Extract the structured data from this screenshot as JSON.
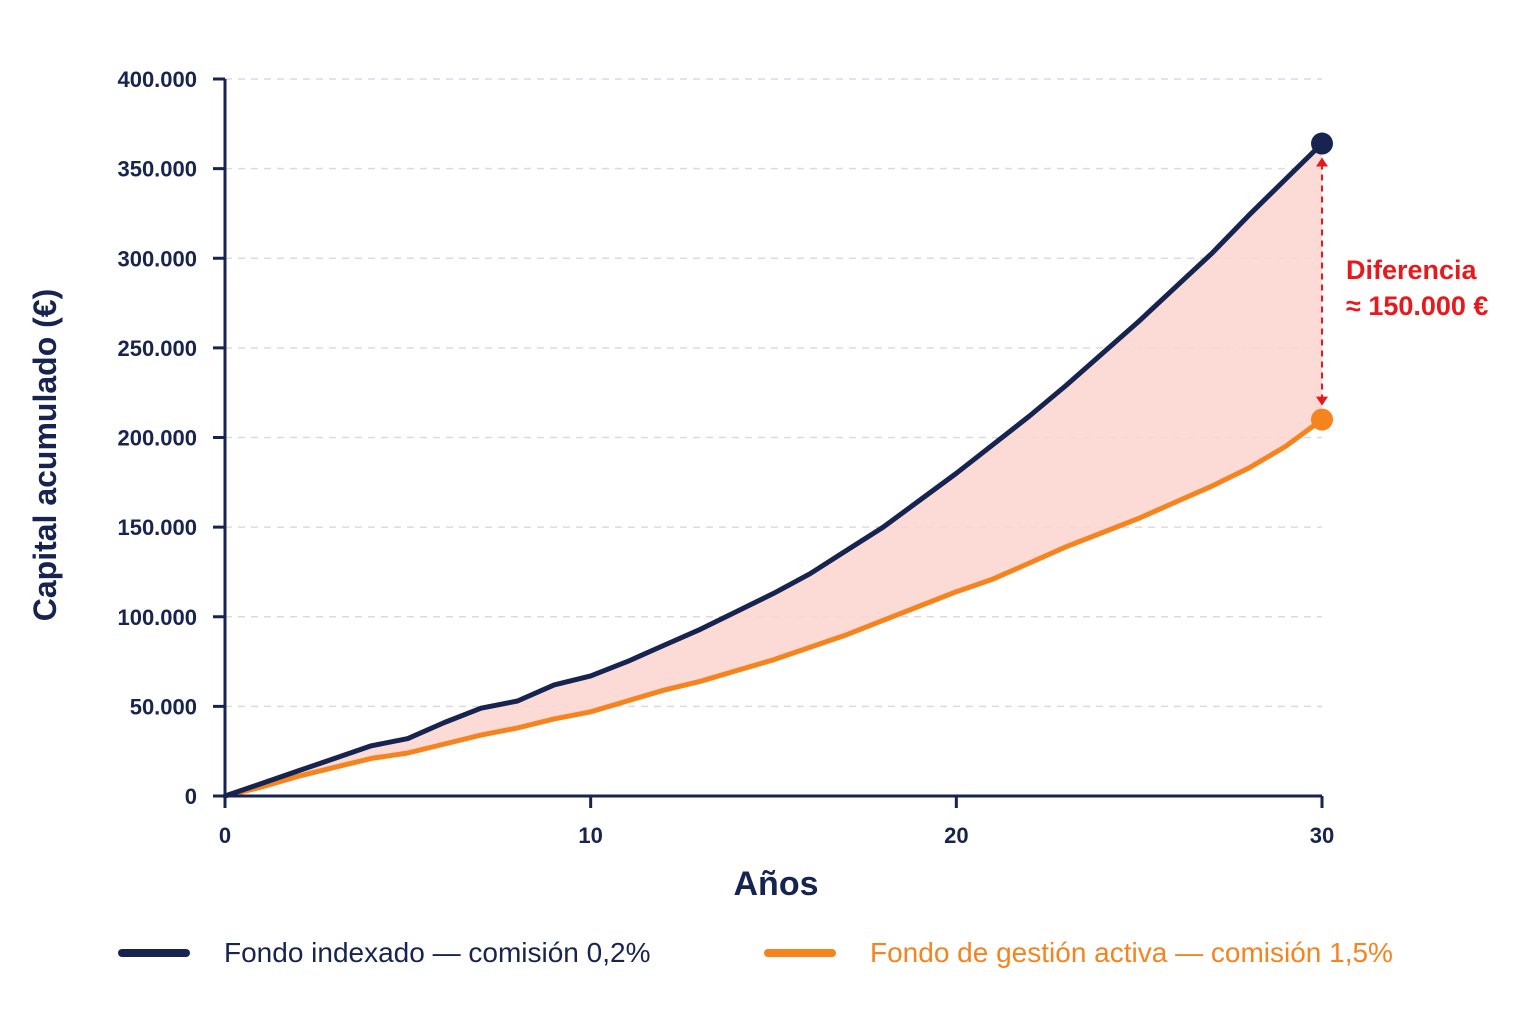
{
  "chart_data": {
    "type": "line",
    "xlabel": "Años",
    "ylabel": "Capital acumulado (€)",
    "xlim": [
      0,
      30
    ],
    "ylim": [
      0,
      400000
    ],
    "x_ticks": [
      0,
      10,
      20,
      30
    ],
    "x_tick_labels": [
      "0",
      "10",
      "20",
      "30"
    ],
    "y_ticks": [
      0,
      50000,
      100000,
      150000,
      200000,
      250000,
      300000,
      350000,
      400000
    ],
    "y_tick_labels": [
      "0",
      "50.000",
      "100.000",
      "150.000",
      "200.000",
      "250.000",
      "300.000",
      "350.000",
      "400.000"
    ],
    "grid": "horizontal dashed",
    "legend_position": "bottom",
    "x": [
      0,
      1,
      2,
      3,
      4,
      5,
      6,
      7,
      8,
      9,
      10,
      11,
      12,
      13,
      14,
      15,
      16,
      17,
      18,
      19,
      20,
      21,
      22,
      23,
      24,
      25,
      26,
      27,
      28,
      29,
      30
    ],
    "series": [
      {
        "name": "Fondo indexado — comisión 0,2%",
        "color": "#17244f",
        "values": [
          0,
          7000,
          14000,
          21000,
          28000,
          32000,
          41000,
          49000,
          53000,
          62000,
          67000,
          75000,
          84000,
          93000,
          103000,
          113000,
          124000,
          137000,
          150000,
          165000,
          180000,
          196000,
          212000,
          229000,
          247000,
          265000,
          284000,
          303000,
          324000,
          344000,
          364000
        ]
      },
      {
        "name": "Fondo de gestión activa — comisión 1,5%",
        "color": "#f5841f",
        "values": [
          0,
          5000,
          11000,
          16000,
          21000,
          24000,
          29000,
          34000,
          38000,
          43000,
          47000,
          53000,
          59000,
          64000,
          70000,
          76000,
          83000,
          90000,
          98000,
          106000,
          114000,
          121000,
          130000,
          139000,
          147000,
          155000,
          164000,
          173000,
          183000,
          195000,
          210000
        ]
      }
    ],
    "annotation": {
      "line1": "Diferencia",
      "line2": "≈ 150.000 €",
      "color": "#e8191c",
      "fill_color": "#fbd5d0"
    }
  }
}
